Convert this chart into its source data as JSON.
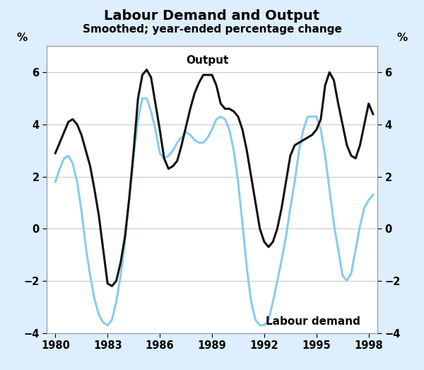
{
  "title": "Labour Demand and Output",
  "subtitle": "Smoothed; year-ended percentage change",
  "figure_bg_color": "#ddeeff",
  "plot_bg_color": "#ffffff",
  "output_label": "Output",
  "labour_label": "Labour demand",
  "ylabel_left": "%",
  "ylabel_right": "%",
  "ylim": [
    -4,
    7
  ],
  "yticks": [
    -4,
    -2,
    0,
    2,
    4,
    6
  ],
  "xlim": [
    1979.5,
    1998.5
  ],
  "xticks": [
    1980,
    1983,
    1986,
    1989,
    1992,
    1995,
    1998
  ],
  "output_color": "#111111",
  "labour_color": "#88ccee",
  "output_lw": 2.2,
  "labour_lw": 2.2,
  "output_x": [
    1980.0,
    1980.25,
    1980.5,
    1980.75,
    1981.0,
    1981.25,
    1981.5,
    1981.75,
    1982.0,
    1982.25,
    1982.5,
    1982.75,
    1983.0,
    1983.25,
    1983.5,
    1983.75,
    1984.0,
    1984.25,
    1984.5,
    1984.75,
    1985.0,
    1985.25,
    1985.5,
    1985.75,
    1986.0,
    1986.25,
    1986.5,
    1986.75,
    1987.0,
    1987.25,
    1987.5,
    1987.75,
    1988.0,
    1988.25,
    1988.5,
    1988.75,
    1989.0,
    1989.25,
    1989.5,
    1989.75,
    1990.0,
    1990.25,
    1990.5,
    1990.75,
    1991.0,
    1991.25,
    1991.5,
    1991.75,
    1992.0,
    1992.25,
    1992.5,
    1992.75,
    1993.0,
    1993.25,
    1993.5,
    1993.75,
    1994.0,
    1994.25,
    1994.5,
    1994.75,
    1995.0,
    1995.25,
    1995.5,
    1995.75,
    1996.0,
    1996.25,
    1996.5,
    1996.75,
    1997.0,
    1997.25,
    1997.5,
    1997.75,
    1998.0,
    1998.25
  ],
  "output_y": [
    2.9,
    3.3,
    3.7,
    4.1,
    4.2,
    4.0,
    3.6,
    3.0,
    2.4,
    1.5,
    0.5,
    -0.8,
    -2.1,
    -2.2,
    -2.0,
    -1.3,
    -0.3,
    1.2,
    3.0,
    5.0,
    5.9,
    6.1,
    5.8,
    4.8,
    3.8,
    2.7,
    2.3,
    2.4,
    2.6,
    3.2,
    3.9,
    4.6,
    5.2,
    5.6,
    5.9,
    5.9,
    5.9,
    5.5,
    4.8,
    4.6,
    4.6,
    4.5,
    4.3,
    3.8,
    3.0,
    2.0,
    1.0,
    0.0,
    -0.5,
    -0.7,
    -0.5,
    0.0,
    0.8,
    1.8,
    2.8,
    3.2,
    3.3,
    3.4,
    3.5,
    3.6,
    3.8,
    4.2,
    5.5,
    6.0,
    5.7,
    4.8,
    4.0,
    3.2,
    2.8,
    2.7,
    3.2,
    4.0,
    4.8,
    4.4
  ],
  "labour_x": [
    1980.0,
    1980.25,
    1980.5,
    1980.75,
    1981.0,
    1981.25,
    1981.5,
    1981.75,
    1982.0,
    1982.25,
    1982.5,
    1982.75,
    1983.0,
    1983.25,
    1983.5,
    1983.75,
    1984.0,
    1984.25,
    1984.5,
    1984.75,
    1985.0,
    1985.25,
    1985.5,
    1985.75,
    1986.0,
    1986.25,
    1986.5,
    1986.75,
    1987.0,
    1987.25,
    1987.5,
    1987.75,
    1988.0,
    1988.25,
    1988.5,
    1988.75,
    1989.0,
    1989.25,
    1989.5,
    1989.75,
    1990.0,
    1990.25,
    1990.5,
    1990.75,
    1991.0,
    1991.25,
    1991.5,
    1991.75,
    1992.0,
    1992.25,
    1992.5,
    1992.75,
    1993.0,
    1993.25,
    1993.5,
    1993.75,
    1994.0,
    1994.25,
    1994.5,
    1994.75,
    1995.0,
    1995.25,
    1995.5,
    1995.75,
    1996.0,
    1996.25,
    1996.5,
    1996.75,
    1997.0,
    1997.25,
    1997.5,
    1997.75,
    1998.0,
    1998.25
  ],
  "labour_y": [
    1.8,
    2.3,
    2.7,
    2.8,
    2.5,
    1.8,
    0.7,
    -0.7,
    -1.8,
    -2.7,
    -3.3,
    -3.6,
    -3.7,
    -3.5,
    -2.8,
    -1.8,
    -0.5,
    1.2,
    2.8,
    4.2,
    5.0,
    5.0,
    4.5,
    3.8,
    2.9,
    2.7,
    2.8,
    3.0,
    3.3,
    3.5,
    3.7,
    3.6,
    3.4,
    3.3,
    3.3,
    3.5,
    3.8,
    4.2,
    4.3,
    4.2,
    3.8,
    3.0,
    1.8,
    0.2,
    -1.5,
    -2.8,
    -3.5,
    -3.7,
    -3.7,
    -3.5,
    -2.8,
    -2.0,
    -1.2,
    -0.3,
    0.8,
    1.8,
    3.0,
    3.8,
    4.3,
    4.3,
    4.3,
    3.8,
    2.8,
    1.5,
    0.2,
    -0.8,
    -1.8,
    -2.0,
    -1.7,
    -0.8,
    0.1,
    0.8,
    1.1,
    1.3
  ]
}
